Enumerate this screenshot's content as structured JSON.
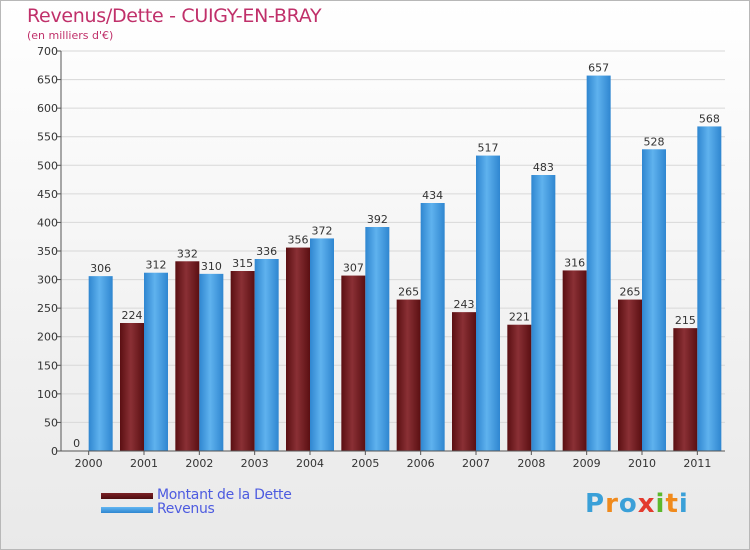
{
  "title": "Revenus/Dette - CUIGY-EN-BRAY",
  "subtitle": "(en milliers d'€)",
  "brand": "Proxiti",
  "colors": {
    "dette": "#6b1a1d",
    "revenus": "#4aa2e6",
    "title": "#c0306a",
    "legend_text": "#4d5be0"
  },
  "chart_data": {
    "type": "bar",
    "title": "Revenus/Dette - CUIGY-EN-BRAY",
    "ylabel": "(en milliers d'€)",
    "xlabel": "",
    "ylim": [
      0,
      700
    ],
    "yticks": [
      0,
      50,
      100,
      150,
      200,
      250,
      300,
      350,
      400,
      450,
      500,
      550,
      600,
      650,
      700
    ],
    "grid": true,
    "legend_position": "bottom-left",
    "categories": [
      "2000",
      "2001",
      "2002",
      "2003",
      "2004",
      "2005",
      "2006",
      "2007",
      "2008",
      "2009",
      "2010",
      "2011"
    ],
    "series": [
      {
        "name": "Montant de la Dette",
        "values": [
          0,
          224,
          332,
          315,
          356,
          307,
          265,
          243,
          221,
          316,
          265,
          215
        ]
      },
      {
        "name": "Revenus",
        "values": [
          306,
          312,
          310,
          336,
          372,
          392,
          434,
          517,
          483,
          657,
          528,
          568
        ]
      }
    ]
  }
}
